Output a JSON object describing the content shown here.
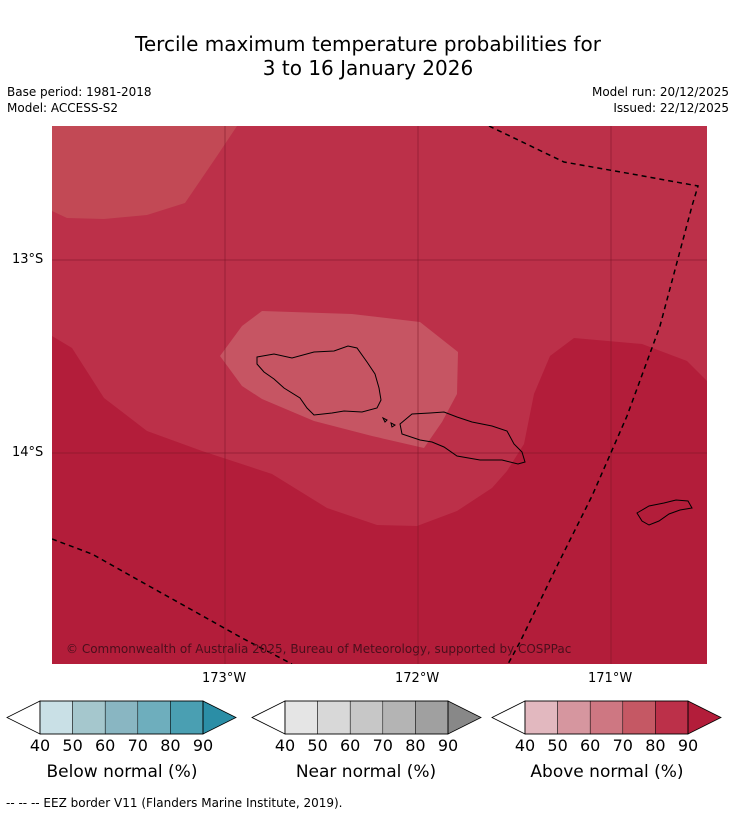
{
  "header": {
    "title_line1": "Tercile maximum temperature probabilities for",
    "title_line2": "3 to 16 January 2026",
    "base_period": "Base period: 1981-2018",
    "model": "Model: ACCESS-S2",
    "model_run": "Model run: 20/12/2025",
    "issued": "Issued: 22/12/2025"
  },
  "map": {
    "lat_labels": [
      "13°S",
      "14°S"
    ],
    "lon_labels": [
      "173°W",
      "172°W",
      "171°W"
    ],
    "copyright": "© Commonwealth of Australia 2025, Bureau of Meteorology, supported by COSPPac",
    "colors": {
      "dark": "#b31d3a",
      "mid": "#bc3049",
      "light": "#c24955",
      "lighter": "#c65563"
    }
  },
  "legends": [
    {
      "title": "Below normal (%)",
      "ticks": [
        "40",
        "50",
        "60",
        "70",
        "80",
        "90"
      ],
      "colors": [
        "#c9e0e6",
        "#a5c7cd",
        "#89b6c2",
        "#6eaebd",
        "#4a9fb2",
        "#2b8ea6"
      ]
    },
    {
      "title": "Near normal (%)",
      "ticks": [
        "40",
        "50",
        "60",
        "70",
        "80",
        "90"
      ],
      "colors": [
        "#e5e5e5",
        "#d8d8d8",
        "#c7c7c7",
        "#b4b4b4",
        "#a0a0a0",
        "#888888"
      ]
    },
    {
      "title": "Above normal (%)",
      "ticks": [
        "40",
        "50",
        "60",
        "70",
        "80",
        "90"
      ],
      "colors": [
        "#e2b8bf",
        "#d6969f",
        "#ce7782",
        "#c55864",
        "#bc3049",
        "#b31d3a"
      ]
    }
  ],
  "footer": {
    "eez_note": "--  --  -- EEZ border V11 (Flanders Marine Institute, 2019)."
  }
}
